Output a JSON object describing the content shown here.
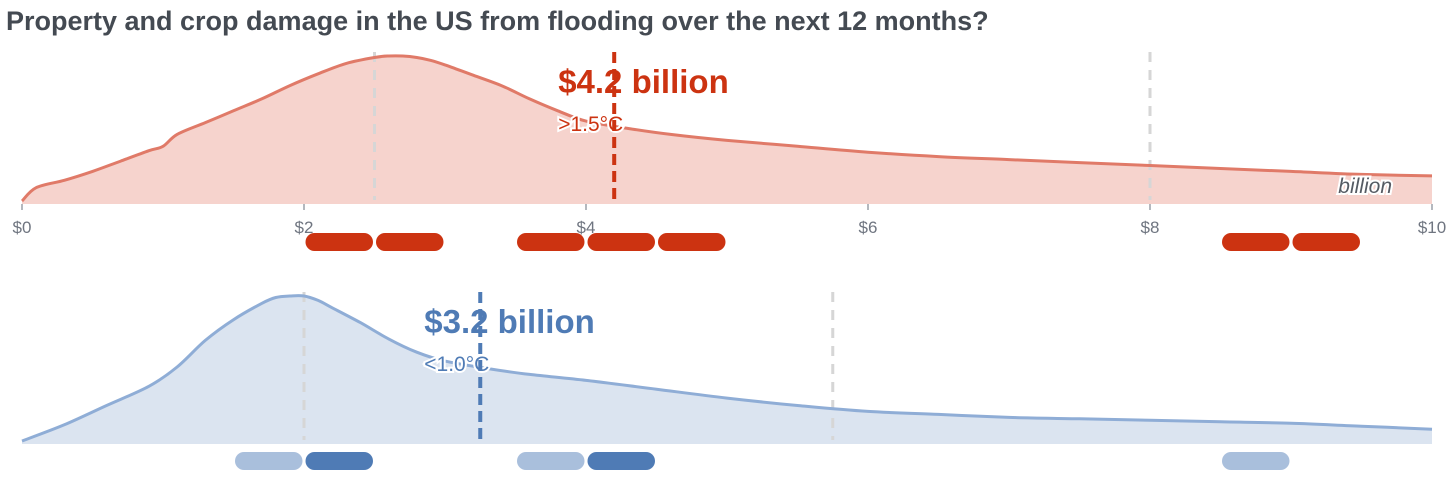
{
  "title": "Property and crop damage in the US from flooding over the next 12 months?",
  "colors": {
    "high_line": "#e07a68",
    "high_fill": "#f6d3cd",
    "high_accent": "#cc3311",
    "low_line": "#8fadd6",
    "low_fill": "#dbe4f0",
    "low_accent": "#4f7bb5",
    "low_light": "#a9bfdc",
    "reference_line": "#d6d6d6",
    "axis_text": "#6f7580"
  },
  "chart_data": [
    {
      "type": "area",
      "scenario": ">1.5°C",
      "median_label": "$4.2 billion",
      "median": 4.2,
      "unit": "billion",
      "xlim": [
        0,
        10
      ],
      "x_ticks": [
        "$0",
        "$2",
        "$4",
        "$6",
        "$8",
        "$10"
      ],
      "x_tick_values": [
        0,
        2,
        4,
        6,
        8,
        10
      ],
      "reference_lines": [
        2.5,
        8
      ],
      "density": {
        "x": [
          0,
          0.1,
          0.3,
          0.5,
          0.7,
          0.9,
          1.0,
          1.1,
          1.3,
          1.5,
          1.7,
          1.9,
          2.1,
          2.3,
          2.5,
          2.6,
          2.7,
          2.8,
          2.9,
          3.0,
          3.2,
          3.4,
          3.6,
          3.8,
          4.0,
          4.3,
          4.6,
          5.0,
          5.5,
          6.0,
          6.5,
          7.0,
          7.5,
          8.0,
          8.5,
          9.0,
          9.5,
          10.0
        ],
        "y": [
          0.02,
          0.11,
          0.16,
          0.22,
          0.29,
          0.36,
          0.39,
          0.47,
          0.55,
          0.63,
          0.71,
          0.8,
          0.88,
          0.95,
          0.99,
          1.0,
          1.0,
          0.99,
          0.97,
          0.94,
          0.87,
          0.8,
          0.71,
          0.63,
          0.56,
          0.51,
          0.47,
          0.43,
          0.39,
          0.35,
          0.32,
          0.3,
          0.28,
          0.26,
          0.24,
          0.22,
          0.2,
          0.19
        ]
      },
      "bins": [
        {
          "x0": 2.0,
          "x1": 2.5,
          "shade": "dark"
        },
        {
          "x0": 2.5,
          "x1": 3.0,
          "shade": "dark"
        },
        {
          "x0": 3.5,
          "x1": 4.0,
          "shade": "dark"
        },
        {
          "x0": 4.0,
          "x1": 4.5,
          "shade": "dark"
        },
        {
          "x0": 4.5,
          "x1": 5.0,
          "shade": "dark"
        },
        {
          "x0": 8.5,
          "x1": 9.0,
          "shade": "dark"
        },
        {
          "x0": 9.0,
          "x1": 9.5,
          "shade": "dark"
        }
      ]
    },
    {
      "type": "area",
      "scenario": "<1.0°C",
      "median_label": "$3.2 billion",
      "median": 3.25,
      "xlim": [
        0,
        10
      ],
      "reference_lines": [
        2.0,
        5.75
      ],
      "density": {
        "x": [
          0,
          0.3,
          0.6,
          0.9,
          1.1,
          1.3,
          1.5,
          1.7,
          1.8,
          1.9,
          2.0,
          2.1,
          2.2,
          2.4,
          2.6,
          2.8,
          3.0,
          3.3,
          3.6,
          4.0,
          4.5,
          5.0,
          5.5,
          6.0,
          6.5,
          7.0,
          7.5,
          8.0,
          8.5,
          9.0,
          9.5,
          10.0
        ],
        "y": [
          0.02,
          0.13,
          0.26,
          0.39,
          0.52,
          0.7,
          0.84,
          0.95,
          0.99,
          1.0,
          1.0,
          0.97,
          0.92,
          0.82,
          0.71,
          0.62,
          0.56,
          0.51,
          0.47,
          0.43,
          0.37,
          0.31,
          0.26,
          0.22,
          0.2,
          0.18,
          0.17,
          0.16,
          0.15,
          0.14,
          0.12,
          0.1
        ]
      },
      "bins": [
        {
          "x0": 1.5,
          "x1": 2.0,
          "shade": "light"
        },
        {
          "x0": 2.0,
          "x1": 2.5,
          "shade": "dark"
        },
        {
          "x0": 3.5,
          "x1": 4.0,
          "shade": "light"
        },
        {
          "x0": 4.0,
          "x1": 4.5,
          "shade": "dark"
        },
        {
          "x0": 8.5,
          "x1": 9.0,
          "shade": "light"
        }
      ]
    }
  ]
}
